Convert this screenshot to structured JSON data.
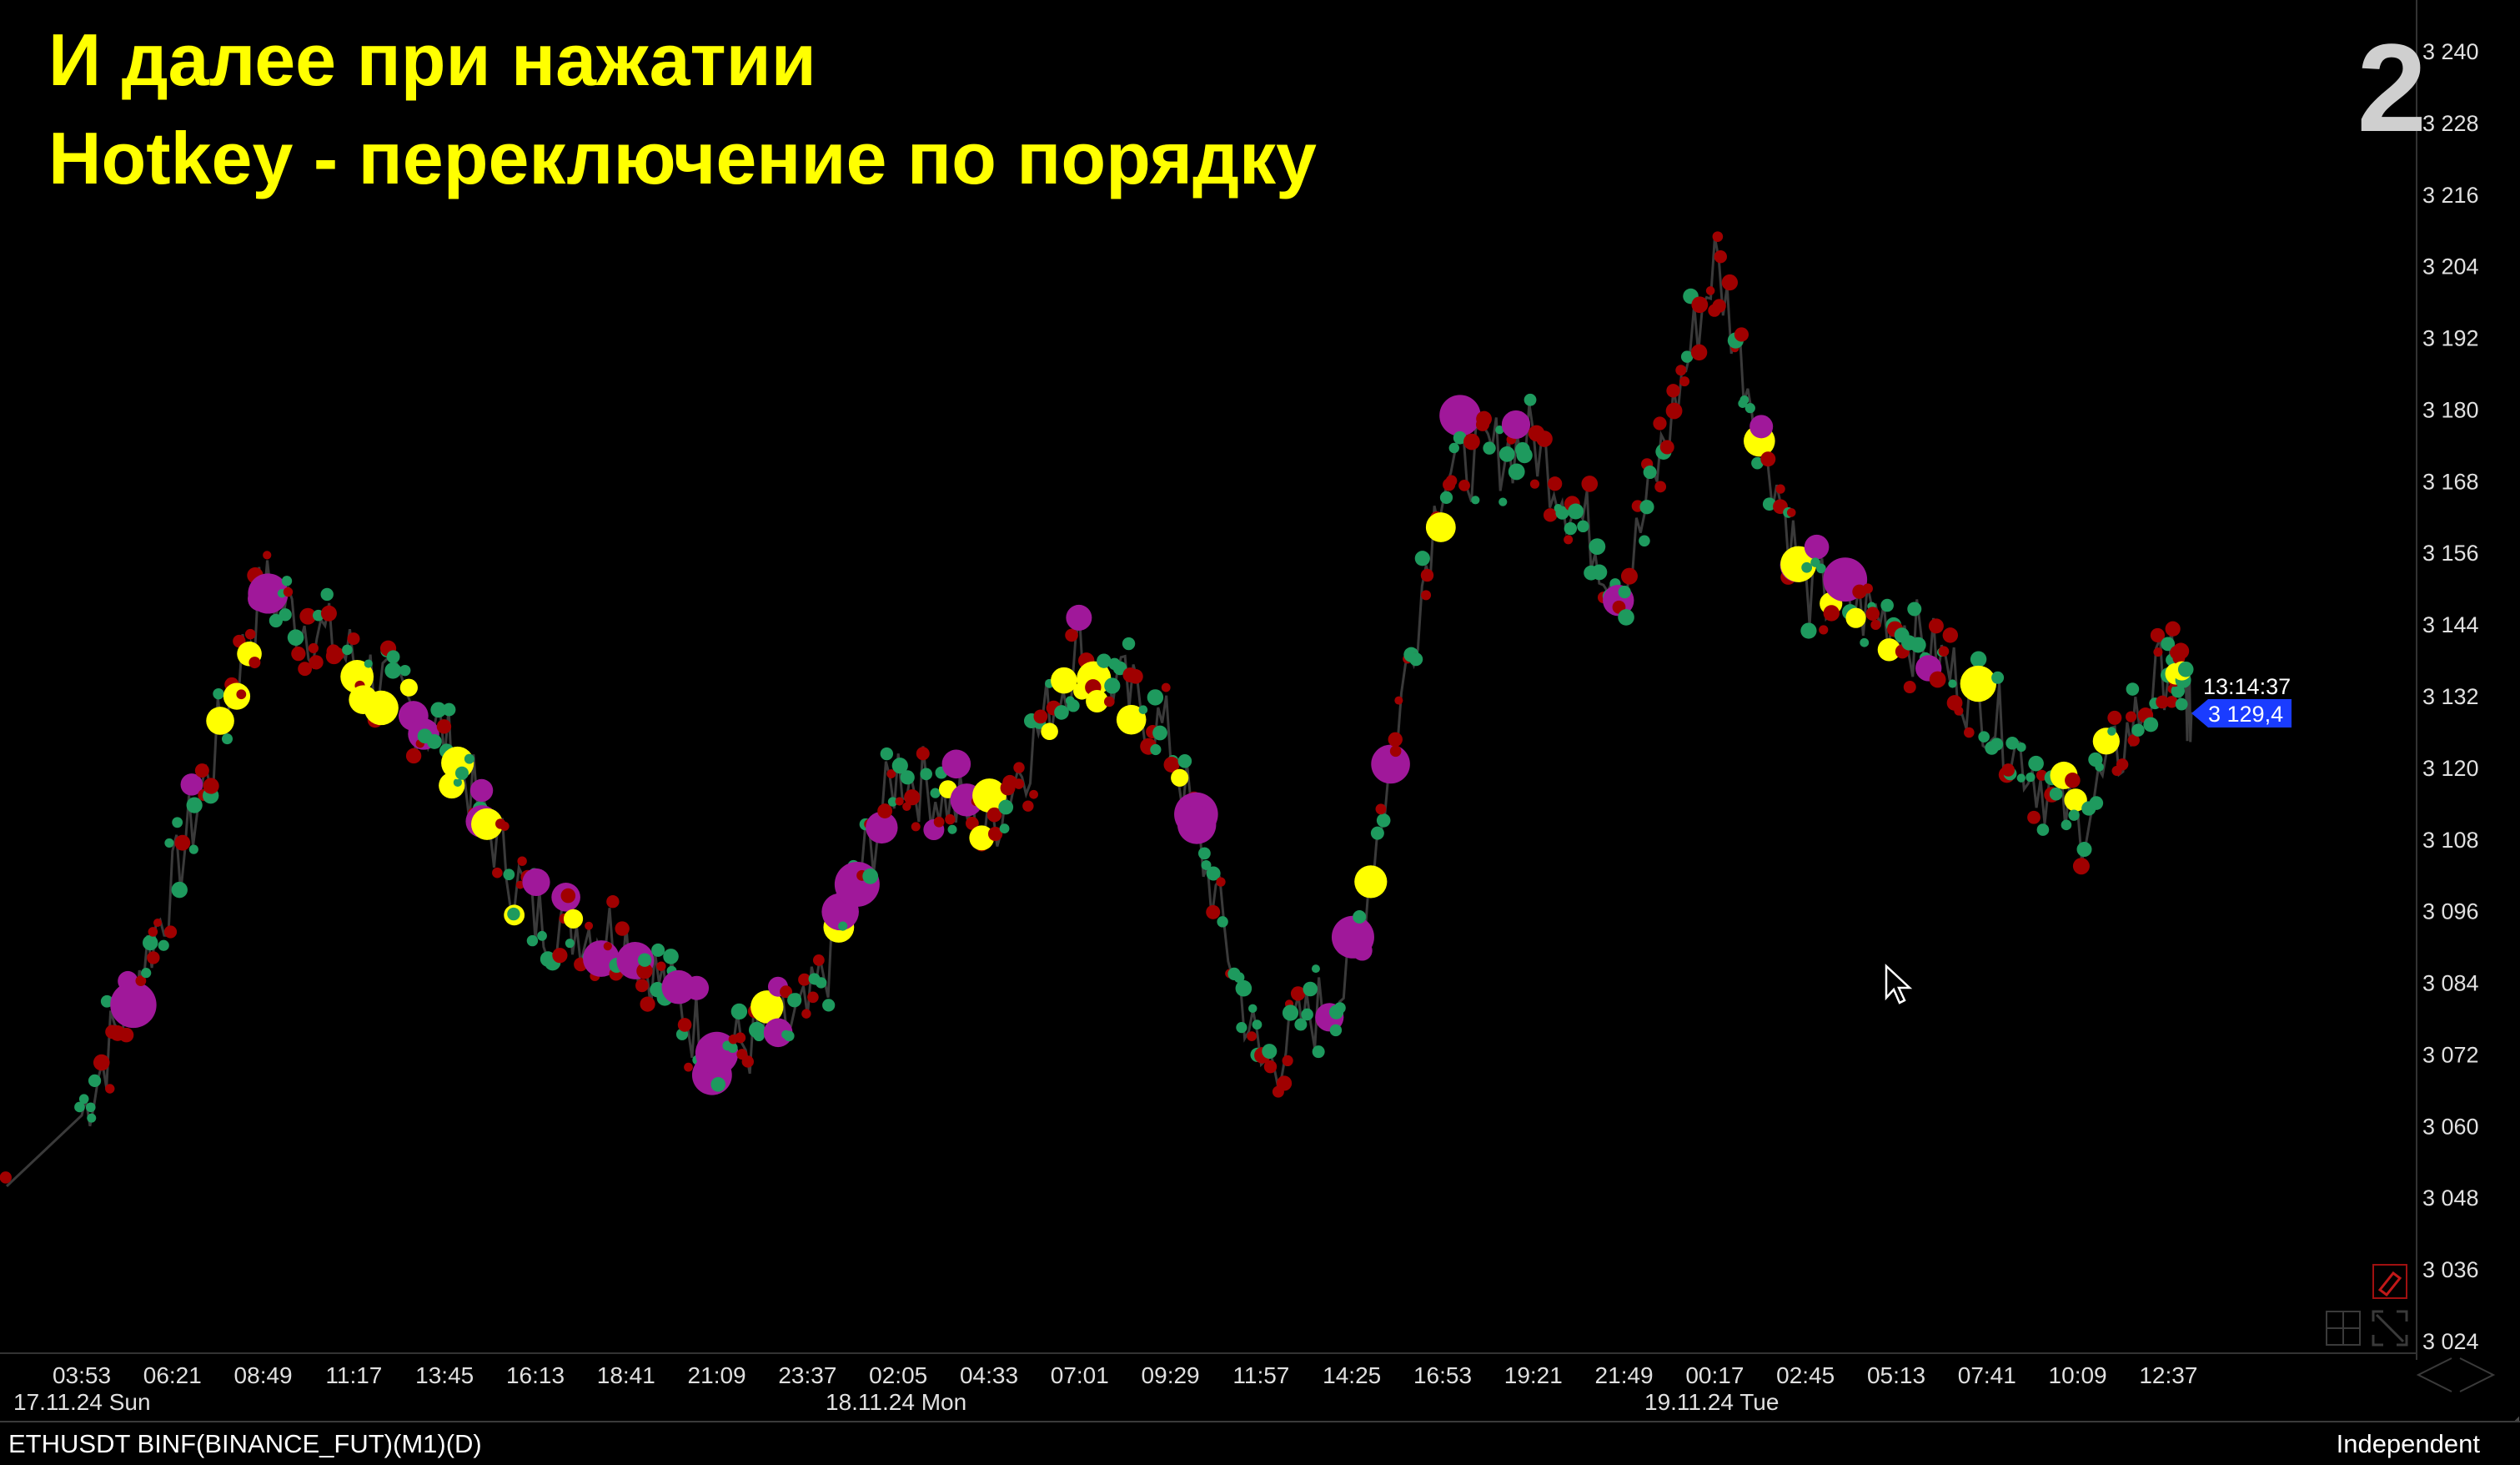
{
  "headline": {
    "line1": "И далее при нажатии",
    "line2": "Hotkey - переключение по порядку"
  },
  "slide_number": "2",
  "price_axis": {
    "ticks": [
      "3 240",
      "3 228",
      "3 216",
      "3 204",
      "3 192",
      "3 180",
      "3 168",
      "3 156",
      "3 144",
      "3 132",
      "3 120",
      "3 108",
      "3 096",
      "3 084",
      "3 072",
      "3 060",
      "3 048",
      "3 036",
      "3 024"
    ]
  },
  "time_axis": {
    "ticks": [
      "03:53",
      "06:21",
      "08:49",
      "11:17",
      "13:45",
      "16:13",
      "18:41",
      "21:09",
      "23:37",
      "02:05",
      "04:33",
      "07:01",
      "09:29",
      "11:57",
      "14:25",
      "16:53",
      "19:21",
      "21:49",
      "00:17",
      "02:45",
      "05:13",
      "07:41",
      "10:09",
      "12:37"
    ],
    "dates": [
      "17.11.24 Sun",
      "18.11.24 Mon",
      "19.11.24 Tue"
    ]
  },
  "price_marker": {
    "time": "13:14:37",
    "price": "3 129,4",
    "color": "#1a3cff"
  },
  "status": {
    "symbol": "ETHUSDT BINF(BINANCE_FUT)(M1)(D)",
    "scale_mode": "Independent"
  },
  "icons": [
    "eraser-icon",
    "grid-icon",
    "fullscreen-icon",
    "scroll-left-icon",
    "scroll-right-icon",
    "mouse-cursor-icon"
  ],
  "colors": {
    "background": "#000000",
    "headline": "#ffff00",
    "buy_marker": "#1e9a5e",
    "sell_marker": "#a00000",
    "large_marker": "#ffff00",
    "cluster_marker": "#a0189a",
    "price_line": "#3a3a3a"
  },
  "chart_data": {
    "type": "line",
    "ylim": [
      3024,
      3240
    ],
    "x": [
      "03:53",
      "06:21",
      "08:49",
      "11:17",
      "13:45",
      "16:13",
      "18:41",
      "21:09",
      "23:37",
      "02:05",
      "04:33",
      "07:01",
      "09:29",
      "11:57",
      "14:25",
      "16:53",
      "19:21",
      "21:49",
      "00:17",
      "02:45",
      "05:13",
      "07:41",
      "10:09",
      "12:37",
      "13:14"
    ],
    "series": [
      {
        "values": [
          3062,
          3100,
          3150,
          3138,
          3125,
          3095,
          3092,
          3072,
          3078,
          3120,
          3110,
          3140,
          3125,
          3070,
          3085,
          3170,
          3175,
          3150,
          3205,
          3150,
          3145,
          3130,
          3110,
          3138,
          3129.4
        ]
      }
    ]
  }
}
